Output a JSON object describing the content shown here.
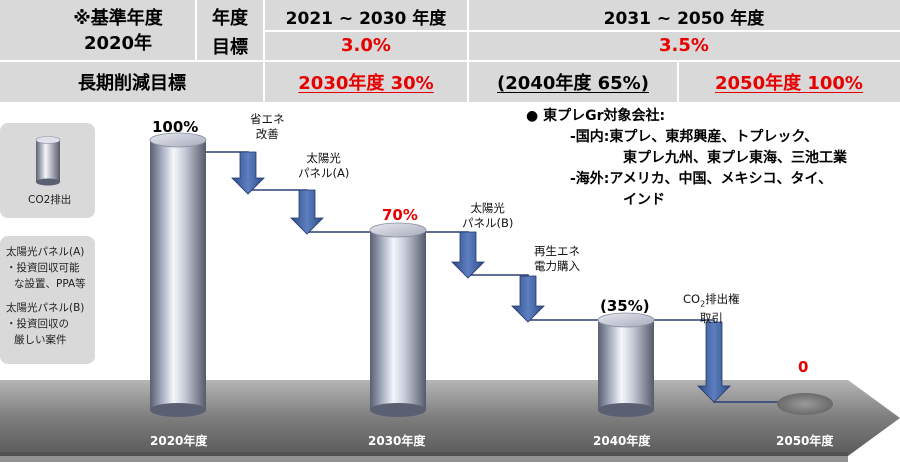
{
  "table": {
    "base_line1": "※基準年度",
    "base_line2": "2020年",
    "label_year": "年度",
    "label_target": "目標",
    "period1": "2021 ~ 2030 年度",
    "period2": "2031 ~ 2050 年度",
    "target1": "3.0%",
    "target2": "3.5%",
    "longterm_label": "長期削減目標",
    "lt_2030": "2030年度 30%",
    "lt_2040": "(2040年度 65%)",
    "lt_2050": "2050年度 100%"
  },
  "legend": {
    "cylinder_label": "CO2排出",
    "panelA_title": "太陽光パネル(A)",
    "panelA_1": "・投資回収可能",
    "panelA_2": "な設置、PPA等",
    "panelB_title": "太陽光パネル(B)",
    "panelB_1": "・投資回収の",
    "panelB_2": "厳しい案件"
  },
  "steps": {
    "energy_saving_1": "省エネ",
    "energy_saving_2": "改善",
    "solar_a_1": "太陽光",
    "solar_a_2": "パネル(A)",
    "solar_b_1": "太陽光",
    "solar_b_2": "パネル(B)",
    "renewable_1": "再生エネ",
    "renewable_2": "電力購入",
    "credit_1_main": "CO",
    "credit_1_sub": "2",
    "credit_1_rest": "排出権",
    "credit_2": "取引"
  },
  "levels": {
    "y2020": "100%",
    "y2030": "70%",
    "y2040": "(35%)",
    "y2050": "0"
  },
  "timeline": {
    "y2020": "2020年度",
    "y2030": "2030年度",
    "y2040": "2040年度",
    "y2050": "2050年度"
  },
  "companies": {
    "heading": "●  東プレGr対象会社:",
    "domestic_label": "-国内:",
    "domestic_1": "東プレ、東邦興産、トプレック、",
    "domestic_2": "東プレ九州、東プレ東海、三池工業",
    "overseas_label": "-海外:",
    "overseas_1": "アメリカ、中国、メキシコ、タイ、",
    "overseas_2": "インド"
  },
  "colors": {
    "emphasis_red": "#e60000",
    "arrow_blue": "#4a6aa8",
    "table_gray": "#d9d9d9",
    "timeline_gray": "#8a8a8a"
  }
}
